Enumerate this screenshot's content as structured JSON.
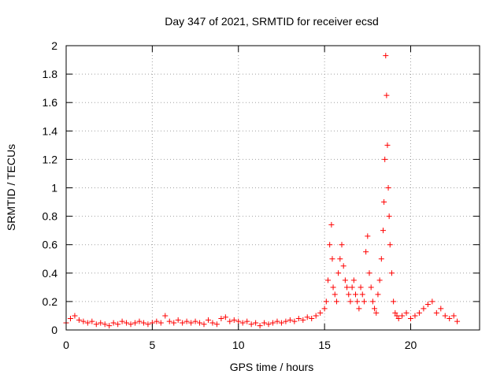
{
  "chart_data": {
    "type": "scatter",
    "title": "Day 347 of 2021, SRMTID for receiver ecsd",
    "xlabel": "GPS time / hours",
    "ylabel": "SRMTID / TECUs",
    "xlim": [
      0,
      24
    ],
    "ylim": [
      0,
      2
    ],
    "xticks": [
      0,
      5,
      10,
      15,
      20
    ],
    "xtick_labels": [
      "0",
      "5",
      "10",
      "15",
      "20"
    ],
    "yticks": [
      0,
      0.2,
      0.4,
      0.6,
      0.8,
      1,
      1.2,
      1.4,
      1.6,
      1.8,
      2
    ],
    "ytick_labels": [
      "0",
      "0.2",
      "0.4",
      "0.6",
      "0.8",
      "1",
      "1.2",
      "1.4",
      "1.6",
      "1.8",
      "2"
    ],
    "grid": true,
    "marker": "+",
    "series": [
      {
        "name": "SRMTID",
        "color": "#ff0000",
        "x": [
          0.0,
          0.25,
          0.5,
          0.75,
          1.0,
          1.25,
          1.5,
          1.75,
          2.0,
          2.25,
          2.5,
          2.75,
          3.0,
          3.25,
          3.5,
          3.75,
          4.0,
          4.25,
          4.5,
          4.75,
          5.0,
          5.25,
          5.5,
          5.75,
          6.0,
          6.25,
          6.5,
          6.75,
          7.0,
          7.25,
          7.5,
          7.75,
          8.0,
          8.25,
          8.5,
          8.75,
          9.0,
          9.25,
          9.5,
          9.75,
          10.0,
          10.25,
          10.5,
          10.75,
          11.0,
          11.25,
          11.5,
          11.75,
          12.0,
          12.25,
          12.5,
          12.75,
          13.0,
          13.25,
          13.5,
          13.75,
          14.0,
          14.25,
          14.5,
          14.75,
          15.0,
          15.1,
          15.2,
          15.3,
          15.4,
          15.45,
          15.5,
          15.6,
          15.7,
          15.8,
          15.9,
          16.0,
          16.1,
          16.2,
          16.3,
          16.4,
          16.5,
          16.6,
          16.7,
          16.8,
          16.9,
          17.0,
          17.1,
          17.2,
          17.3,
          17.4,
          17.5,
          17.6,
          17.7,
          17.8,
          17.9,
          18.0,
          18.1,
          18.2,
          18.3,
          18.4,
          18.45,
          18.5,
          18.55,
          18.6,
          18.65,
          18.7,
          18.75,
          18.8,
          18.9,
          19.0,
          19.1,
          19.2,
          19.3,
          19.5,
          19.75,
          20.0,
          20.25,
          20.5,
          20.75,
          21.0,
          21.25,
          21.5,
          21.75,
          22.0,
          22.25,
          22.5,
          22.7
        ],
        "y": [
          0.05,
          0.08,
          0.1,
          0.07,
          0.06,
          0.05,
          0.06,
          0.04,
          0.05,
          0.04,
          0.03,
          0.05,
          0.04,
          0.06,
          0.05,
          0.04,
          0.05,
          0.06,
          0.05,
          0.04,
          0.05,
          0.06,
          0.05,
          0.1,
          0.06,
          0.05,
          0.07,
          0.05,
          0.06,
          0.05,
          0.06,
          0.05,
          0.04,
          0.07,
          0.05,
          0.04,
          0.08,
          0.09,
          0.06,
          0.07,
          0.06,
          0.05,
          0.06,
          0.04,
          0.05,
          0.03,
          0.05,
          0.04,
          0.05,
          0.06,
          0.05,
          0.06,
          0.07,
          0.06,
          0.08,
          0.07,
          0.09,
          0.08,
          0.1,
          0.12,
          0.15,
          0.2,
          0.35,
          0.6,
          0.74,
          0.5,
          0.3,
          0.25,
          0.2,
          0.4,
          0.5,
          0.6,
          0.45,
          0.35,
          0.3,
          0.25,
          0.2,
          0.3,
          0.35,
          0.25,
          0.2,
          0.15,
          0.3,
          0.25,
          0.2,
          0.55,
          0.66,
          0.4,
          0.3,
          0.2,
          0.15,
          0.12,
          0.25,
          0.35,
          0.5,
          0.7,
          0.9,
          1.2,
          1.93,
          1.65,
          1.3,
          1.0,
          0.8,
          0.6,
          0.4,
          0.2,
          0.12,
          0.1,
          0.08,
          0.1,
          0.12,
          0.08,
          0.1,
          0.12,
          0.15,
          0.18,
          0.2,
          0.12,
          0.15,
          0.1,
          0.08,
          0.1,
          0.06
        ]
      }
    ]
  }
}
